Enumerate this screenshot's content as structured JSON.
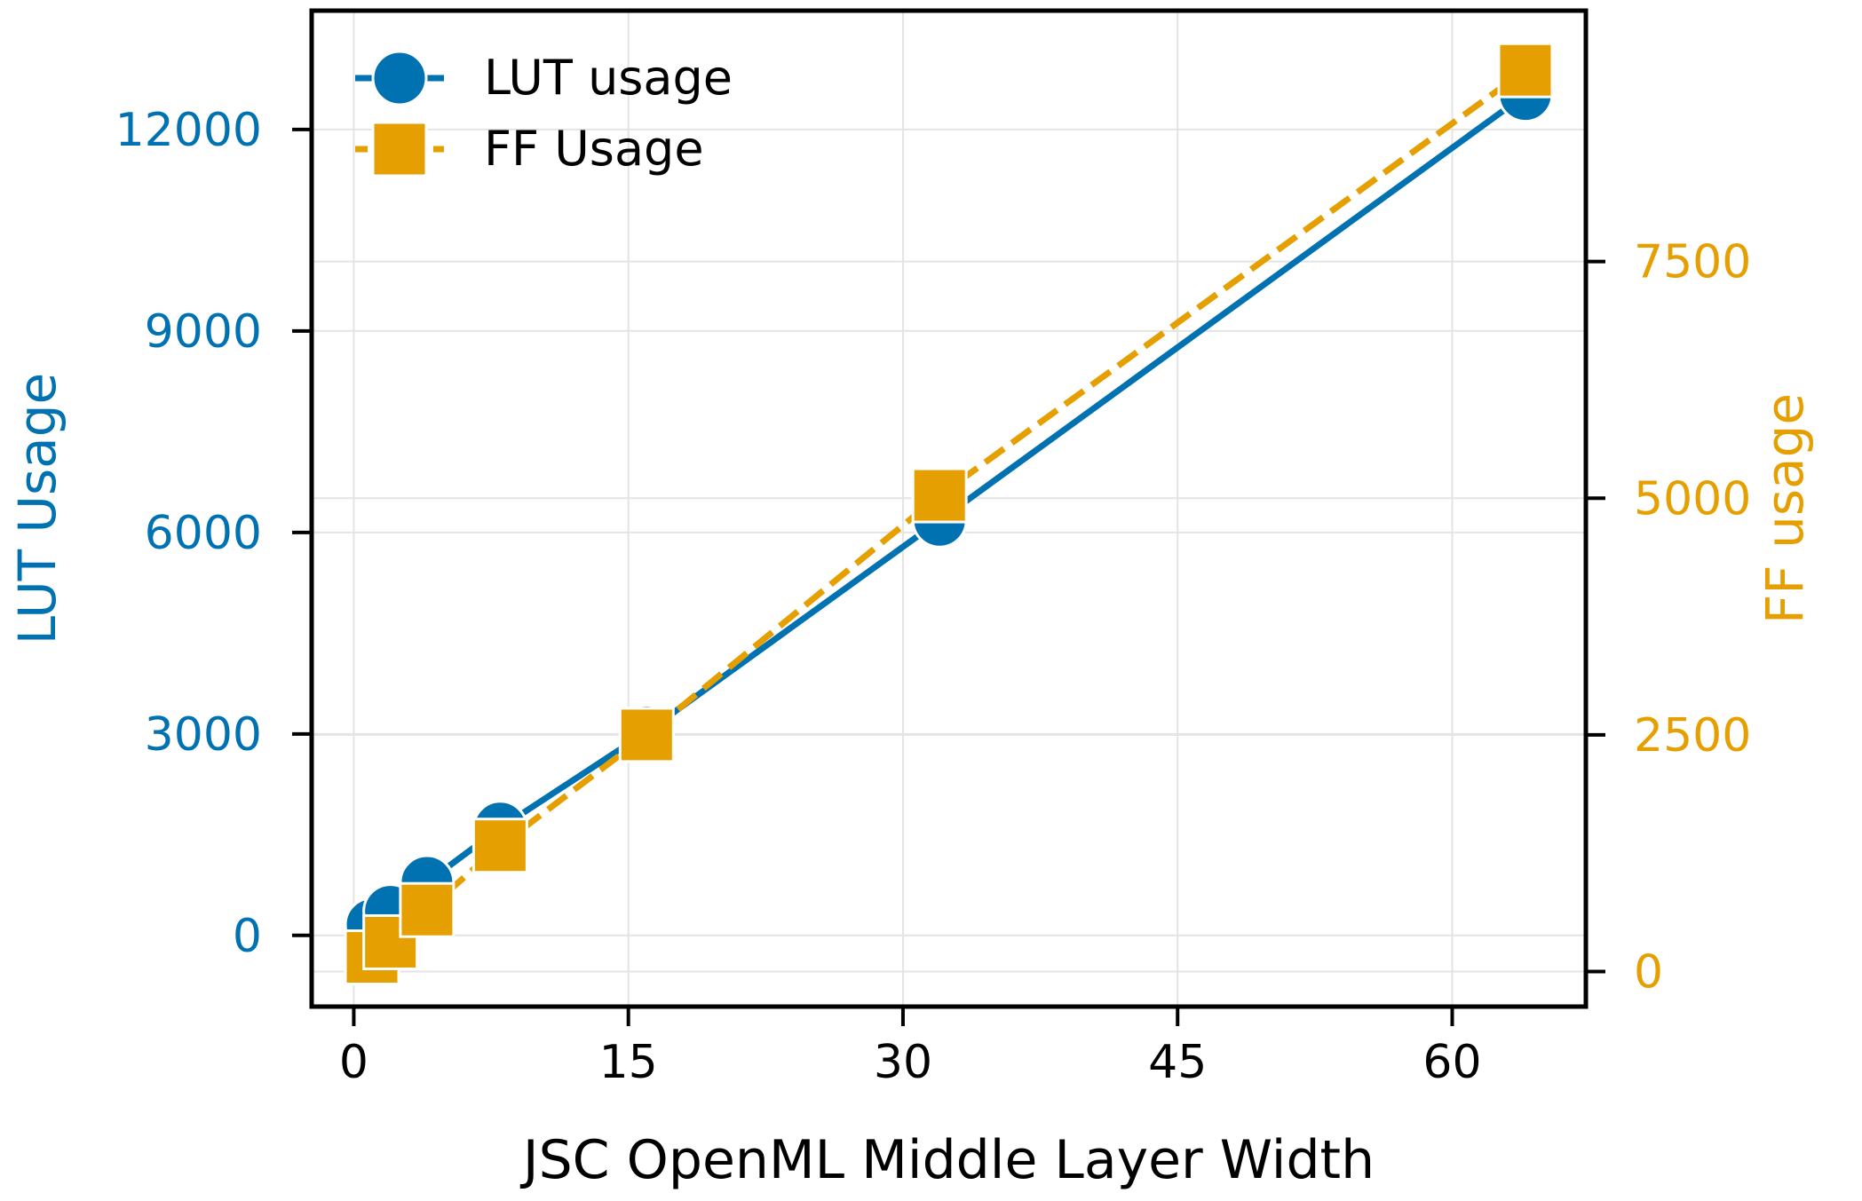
{
  "chart_data": {
    "type": "line",
    "x": [
      1,
      2,
      4,
      8,
      16,
      32,
      64
    ],
    "xlabel": "JSC OpenML Middle Layer Width",
    "xlim": [
      -2.3,
      67.3
    ],
    "xticks": [
      0,
      15,
      30,
      45,
      60
    ],
    "y_left": {
      "label": "LUT Usage",
      "lim": [
        -1060,
        13770
      ],
      "ticks": [
        0,
        3000,
        6000,
        9000,
        12000
      ],
      "color": "#0072b2"
    },
    "y_right": {
      "label": "FF usage",
      "lim": [
        -370,
        10150
      ],
      "ticks": [
        0,
        2500,
        5000,
        7500
      ],
      "color": "#e69f00"
    },
    "series": [
      {
        "name": "LUT usage",
        "axis": "left",
        "values": [
          160,
          360,
          790,
          1600,
          3030,
          6180,
          12520
        ],
        "color": "#0072b2",
        "marker": "circle",
        "line": "solid"
      },
      {
        "name": "FF Usage",
        "axis": "right",
        "values": [
          150,
          310,
          650,
          1330,
          2500,
          5030,
          9520
        ],
        "color": "#e69f00",
        "marker": "square",
        "line": "dashed"
      }
    ],
    "legend": "top-left",
    "grid": true
  }
}
